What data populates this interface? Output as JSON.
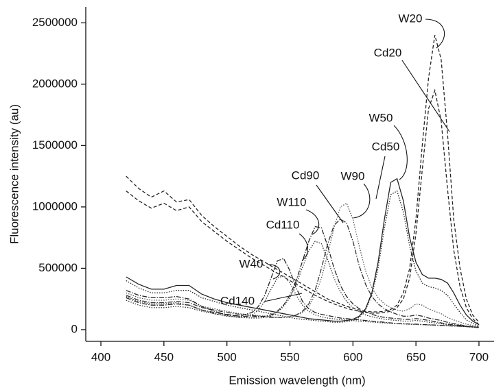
{
  "chart_data": {
    "type": "line",
    "x_label": "Emission wavelength (nm)",
    "y_label": "Fluorescence intensity (au)",
    "x": [
      420,
      430,
      440,
      450,
      460,
      470,
      480,
      490,
      500,
      510,
      520,
      525,
      530,
      535,
      540,
      545,
      550,
      555,
      560,
      565,
      570,
      575,
      580,
      585,
      590,
      595,
      600,
      605,
      610,
      615,
      620,
      625,
      630,
      635,
      640,
      645,
      650,
      655,
      660,
      665,
      670,
      675,
      680,
      685,
      690,
      695,
      700
    ],
    "xlim": [
      388,
      712
    ],
    "xticks": [
      400,
      450,
      500,
      550,
      600,
      650,
      700
    ],
    "ylim": [
      -95000,
      2630000
    ],
    "yticks": [
      0,
      500000,
      1000000,
      1500000,
      2000000,
      2500000
    ],
    "series": [
      {
        "name": "W20",
        "color": "#222222",
        "style": "dashed",
        "values": [
          1250000,
          1150000,
          1080000,
          1130000,
          1040000,
          1060000,
          930000,
          840000,
          760000,
          680000,
          610000,
          580000,
          550000,
          520000,
          490000,
          460000,
          430000,
          400000,
          370000,
          340000,
          310000,
          280000,
          250000,
          230000,
          210000,
          190000,
          175000,
          160000,
          150000,
          145000,
          145000,
          150000,
          165000,
          200000,
          300000,
          500000,
          900000,
          1500000,
          2050000,
          2400000,
          2200000,
          1600000,
          900000,
          500000,
          250000,
          120000,
          60000
        ]
      },
      {
        "name": "Cd20",
        "color": "#222222",
        "style": "dashed",
        "values": [
          1130000,
          1050000,
          990000,
          1030000,
          970000,
          1000000,
          880000,
          800000,
          720000,
          650000,
          580000,
          550000,
          520000,
          490000,
          460000,
          430000,
          400000,
          370000,
          340000,
          310000,
          280000,
          255000,
          230000,
          210000,
          190000,
          175000,
          160000,
          150000,
          140000,
          135000,
          135000,
          140000,
          150000,
          180000,
          250000,
          420000,
          780000,
          1300000,
          1800000,
          1950000,
          1700000,
          1150000,
          650000,
          350000,
          180000,
          90000,
          40000
        ]
      },
      {
        "name": "W50",
        "color": "#222222",
        "style": "solid",
        "values": [
          430000,
          370000,
          330000,
          330000,
          360000,
          360000,
          290000,
          250000,
          220000,
          200000,
          180000,
          170000,
          160000,
          150000,
          140000,
          130000,
          120000,
          110000,
          100000,
          90000,
          85000,
          80000,
          75000,
          70000,
          70000,
          75000,
          85000,
          110000,
          170000,
          300000,
          550000,
          900000,
          1200000,
          1230000,
          1050000,
          750000,
          550000,
          450000,
          420000,
          420000,
          410000,
          380000,
          300000,
          200000,
          120000,
          70000,
          40000
        ]
      },
      {
        "name": "Cd50",
        "color": "#222222",
        "style": "dotted",
        "values": [
          400000,
          340000,
          300000,
          300000,
          320000,
          320000,
          260000,
          230000,
          200000,
          180000,
          160000,
          150000,
          140000,
          130000,
          120000,
          110000,
          100000,
          90000,
          85000,
          80000,
          75000,
          70000,
          65000,
          60000,
          60000,
          65000,
          75000,
          100000,
          160000,
          280000,
          500000,
          830000,
          1100000,
          1130000,
          960000,
          680000,
          480000,
          380000,
          350000,
          340000,
          320000,
          280000,
          210000,
          140000,
          80000,
          50000,
          30000
        ]
      },
      {
        "name": "W90",
        "color": "#555555",
        "style": "dotted",
        "values": [
          300000,
          260000,
          240000,
          240000,
          250000,
          240000,
          190000,
          170000,
          150000,
          130000,
          120000,
          115000,
          110000,
          105000,
          100000,
          100000,
          105000,
          115000,
          140000,
          190000,
          280000,
          420000,
          620000,
          830000,
          1000000,
          1030000,
          900000,
          680000,
          480000,
          340000,
          260000,
          210000,
          180000,
          160000,
          150000,
          170000,
          210000,
          200000,
          170000,
          150000,
          130000,
          100000,
          80000,
          60000,
          45000,
          35000,
          25000
        ]
      },
      {
        "name": "Cd90",
        "color": "#333333",
        "style": "dashdot",
        "values": [
          280000,
          240000,
          220000,
          220000,
          230000,
          220000,
          180000,
          160000,
          140000,
          125000,
          115000,
          110000,
          105000,
          100000,
          100000,
          100000,
          105000,
          120000,
          150000,
          210000,
          320000,
          500000,
          700000,
          850000,
          900000,
          870000,
          720000,
          520000,
          370000,
          270000,
          210000,
          170000,
          145000,
          125000,
          110000,
          110000,
          120000,
          110000,
          95000,
          85000,
          75000,
          60000,
          50000,
          40000,
          30000,
          25000,
          20000
        ]
      },
      {
        "name": "W110",
        "color": "#222222",
        "style": "dashdot",
        "values": [
          260000,
          220000,
          200000,
          200000,
          210000,
          200000,
          160000,
          140000,
          125000,
          110000,
          105000,
          105000,
          110000,
          120000,
          150000,
          200000,
          280000,
          400000,
          560000,
          720000,
          840000,
          830000,
          680000,
          500000,
          360000,
          270000,
          210000,
          170000,
          145000,
          125000,
          110000,
          100000,
          95000,
          90000,
          85000,
          85000,
          90000,
          85000,
          75000,
          65000,
          55000,
          45000,
          40000,
          35000,
          28000,
          22000,
          18000
        ]
      },
      {
        "name": "Cd110",
        "color": "#333333",
        "style": "dotted",
        "values": [
          240000,
          200000,
          180000,
          180000,
          190000,
          180000,
          150000,
          130000,
          115000,
          100000,
          95000,
          95000,
          100000,
          110000,
          140000,
          190000,
          260000,
          370000,
          510000,
          640000,
          720000,
          700000,
          570000,
          420000,
          310000,
          230000,
          180000,
          145000,
          120000,
          105000,
          95000,
          85000,
          80000,
          75000,
          70000,
          70000,
          75000,
          70000,
          60000,
          55000,
          48000,
          40000,
          35000,
          30000,
          25000,
          20000,
          15000
        ]
      },
      {
        "name": "W40",
        "color": "#222222",
        "style": "dashdot",
        "values": [
          320000,
          280000,
          260000,
          260000,
          270000,
          250000,
          190000,
          150000,
          120000,
          110000,
          140000,
          190000,
          280000,
          420000,
          560000,
          580000,
          480000,
          340000,
          230000,
          170000,
          140000,
          125000,
          115000,
          105000,
          95000,
          90000,
          85000,
          80000,
          75000,
          70000,
          65000,
          60000,
          55000,
          50000,
          48000,
          46000,
          45000,
          42000,
          40000,
          38000,
          35000,
          32000,
          30000,
          28000,
          25000,
          22000,
          20000
        ]
      },
      {
        "name": "Cd140",
        "color": "#333333",
        "style": "dotted",
        "values": [
          270000,
          230000,
          210000,
          210000,
          220000,
          200000,
          160000,
          130000,
          110000,
          100000,
          120000,
          160000,
          230000,
          330000,
          420000,
          440000,
          380000,
          280000,
          200000,
          150000,
          120000,
          105000,
          95000,
          88000,
          82000,
          78000,
          74000,
          70000,
          66000,
          62000,
          58000,
          55000,
          52000,
          48000,
          46000,
          44000,
          42000,
          40000,
          38000,
          36000,
          34000,
          32000,
          30000,
          28000,
          25000,
          22000,
          20000
        ]
      }
    ]
  }
}
